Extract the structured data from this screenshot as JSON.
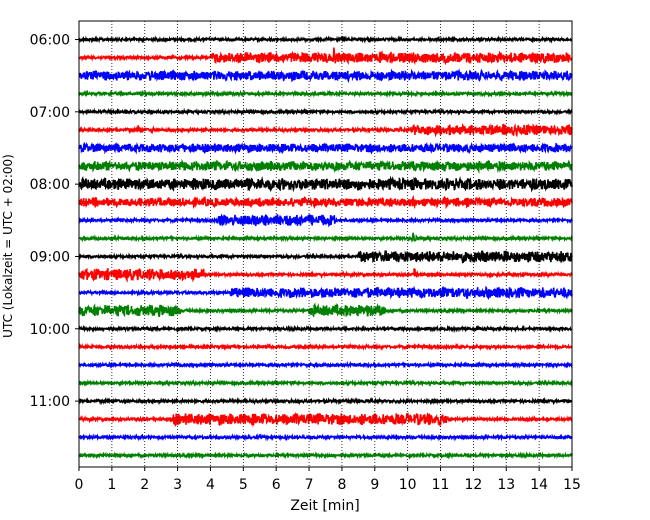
{
  "chart_data": {
    "type": "line",
    "title": "",
    "xlabel": "Zeit  [min]",
    "ylabel": "UTC (Lokalzeit = UTC + 02:00)",
    "xlim": [
      0,
      15
    ],
    "x_ticks": [
      0,
      1,
      2,
      3,
      4,
      5,
      6,
      7,
      8,
      9,
      10,
      11,
      12,
      13,
      14,
      15
    ],
    "x_tick_labels": [
      "0",
      "1",
      "2",
      "3",
      "4",
      "5",
      "6",
      "7",
      "8",
      "9",
      "10",
      "11",
      "12",
      "13",
      "14",
      "15"
    ],
    "y_tick_labels": [
      "06:00",
      "07:00",
      "08:00",
      "09:00",
      "10:00",
      "11:00"
    ],
    "y_tick_rows": [
      0,
      4,
      8,
      12,
      16,
      20
    ],
    "grid": "vertical dotted at each minute",
    "row_interval_min": 15,
    "rows": [
      {
        "start": "06:00",
        "color": "#000000",
        "bursts": []
      },
      {
        "start": "06:15",
        "color": "#ff0000",
        "bursts": [
          {
            "t0": 4.0,
            "t1": 15.0,
            "amp": 0.55
          }
        ],
        "spikes": [
          {
            "t": 7.75,
            "amp": 1.1
          }
        ]
      },
      {
        "start": "06:30",
        "color": "#0000ff",
        "bursts": [
          {
            "t0": 0.0,
            "t1": 15.0,
            "amp": 0.5
          }
        ]
      },
      {
        "start": "06:45",
        "color": "#008000",
        "bursts": []
      },
      {
        "start": "07:00",
        "color": "#000000",
        "bursts": []
      },
      {
        "start": "07:15",
        "color": "#ff0000",
        "bursts": [
          {
            "t0": 10.1,
            "t1": 15.0,
            "amp": 0.55
          }
        ],
        "spikes": [
          {
            "t": 1.8,
            "amp": 0.55
          },
          {
            "t": 2.2,
            "amp": 0.4
          }
        ]
      },
      {
        "start": "07:30",
        "color": "#0000ff",
        "bursts": [
          {
            "t0": 0.0,
            "t1": 15.0,
            "amp": 0.45
          }
        ]
      },
      {
        "start": "07:45",
        "color": "#008000",
        "bursts": [
          {
            "t0": 0.0,
            "t1": 15.0,
            "amp": 0.5
          }
        ]
      },
      {
        "start": "08:00",
        "color": "#000000",
        "bursts": [
          {
            "t0": 0.0,
            "t1": 15.0,
            "amp": 0.6
          }
        ]
      },
      {
        "start": "08:15",
        "color": "#ff0000",
        "bursts": [
          {
            "t0": 0.0,
            "t1": 15.0,
            "amp": 0.45
          }
        ]
      },
      {
        "start": "08:30",
        "color": "#0000ff",
        "bursts": [
          {
            "t0": 4.2,
            "t1": 7.8,
            "amp": 0.6
          }
        ]
      },
      {
        "start": "08:45",
        "color": "#008000",
        "bursts": [],
        "spikes": [
          {
            "t": 10.15,
            "amp": 1.0
          }
        ]
      },
      {
        "start": "09:00",
        "color": "#000000",
        "bursts": [
          {
            "t0": 8.5,
            "t1": 15.0,
            "amp": 0.6
          }
        ]
      },
      {
        "start": "09:15",
        "color": "#ff0000",
        "bursts": [
          {
            "t0": 0.0,
            "t1": 3.8,
            "amp": 0.6
          }
        ],
        "spikes": [
          {
            "t": 10.2,
            "amp": 0.75
          }
        ]
      },
      {
        "start": "09:30",
        "color": "#0000ff",
        "bursts": [
          {
            "t0": 4.6,
            "t1": 15.0,
            "amp": 0.55
          }
        ]
      },
      {
        "start": "09:45",
        "color": "#008000",
        "bursts": [
          {
            "t0": 0.0,
            "t1": 3.1,
            "amp": 0.6
          },
          {
            "t0": 7.0,
            "t1": 9.3,
            "amp": 0.6
          }
        ]
      },
      {
        "start": "10:00",
        "color": "#000000",
        "bursts": []
      },
      {
        "start": "10:15",
        "color": "#ff0000",
        "bursts": []
      },
      {
        "start": "10:30",
        "color": "#0000ff",
        "bursts": []
      },
      {
        "start": "10:45",
        "color": "#008000",
        "bursts": []
      },
      {
        "start": "11:00",
        "color": "#000000",
        "bursts": []
      },
      {
        "start": "11:15",
        "color": "#ff0000",
        "bursts": [
          {
            "t0": 2.8,
            "t1": 11.2,
            "amp": 0.6
          }
        ],
        "spikes": [
          {
            "t": 10.6,
            "amp": 1.2
          }
        ]
      },
      {
        "start": "11:30",
        "color": "#0000ff",
        "bursts": []
      },
      {
        "start": "11:45",
        "color": "#008000",
        "bursts": []
      }
    ]
  }
}
